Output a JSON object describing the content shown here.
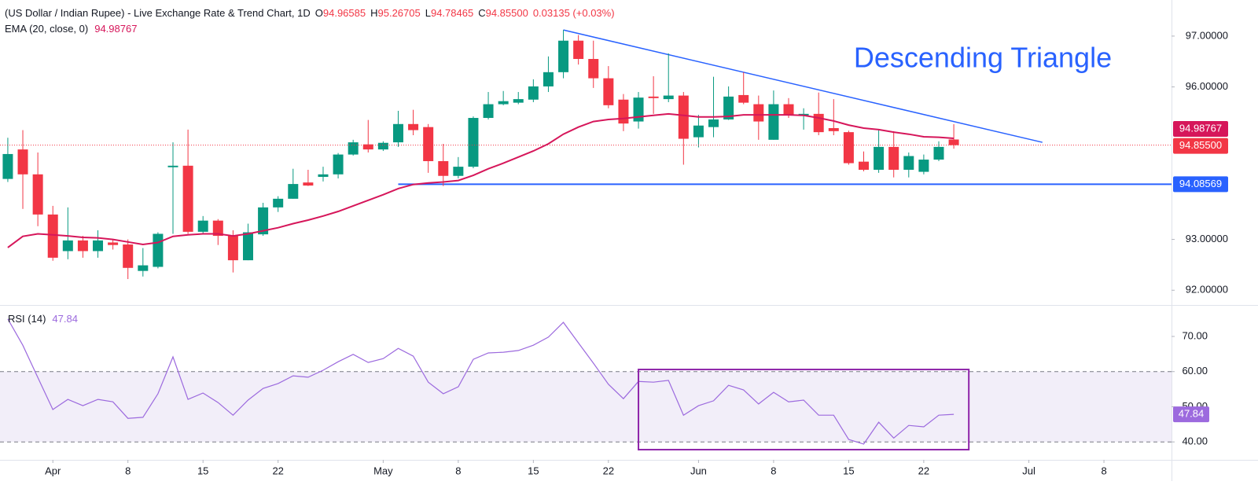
{
  "chart_data": [
    {
      "type": "candlestick",
      "title": "(US Dollar / Indian Rupee) - Live Exchange Rate & Trend Chart, 1D",
      "ohlc_legend": [
        {
          "key": "O",
          "text": "94.96585"
        },
        {
          "key": "H",
          "text": "95.26705"
        },
        {
          "key": "L",
          "text": "94.78465"
        },
        {
          "key": "C",
          "text": "94.85500"
        }
      ],
      "change": "0.03135 (+0.03%)",
      "open": [
        94.19,
        94.77,
        94.28,
        93.49,
        92.77,
        92.98,
        92.77,
        92.94,
        92.9,
        92.38,
        92.46,
        94.42,
        94.45,
        93.15,
        93.37,
        93.07,
        92.59,
        93.1,
        93.63,
        93.8,
        94.12,
        94.23,
        94.28,
        94.67,
        94.87,
        94.77,
        94.91,
        95.27,
        95.21,
        94.54,
        94.25,
        94.43,
        95.39,
        95.66,
        95.69,
        95.75,
        96.01,
        96.29,
        96.91,
        96.55,
        96.17,
        95.75,
        95.32,
        95.81,
        95.76,
        95.83,
        95.01,
        95.21,
        95.36,
        95.84,
        95.66,
        94.96,
        95.66,
        95.44,
        95.47,
        95.19,
        95.11,
        94.53,
        94.37,
        94.82,
        94.37,
        94.33,
        94.57,
        94.96585
      ],
      "high": [
        95.0,
        95.15,
        94.71,
        93.66,
        93.63,
        93.07,
        93.18,
        93.0,
        93.0,
        92.83,
        93.14,
        94.91,
        95.16,
        93.46,
        93.4,
        93.18,
        93.31,
        93.72,
        93.85,
        94.39,
        94.37,
        94.43,
        94.7,
        94.96,
        95.35,
        94.93,
        95.53,
        95.55,
        95.27,
        94.88,
        94.62,
        95.42,
        95.9,
        95.92,
        95.9,
        96.15,
        96.6,
        97.12,
        97.02,
        96.91,
        96.41,
        95.86,
        95.9,
        96.21,
        96.66,
        95.9,
        95.45,
        96.2,
        96.01,
        96.29,
        95.83,
        95.93,
        95.78,
        95.58,
        95.89,
        95.76,
        95.14,
        94.73,
        95.16,
        95.13,
        94.71,
        94.67,
        94.93,
        95.26705
      ],
      "low": [
        94.13,
        93.6,
        93.26,
        92.58,
        92.61,
        92.64,
        92.64,
        92.8,
        92.22,
        92.27,
        92.43,
        93.11,
        93.11,
        93.11,
        92.89,
        92.35,
        92.59,
        93.07,
        93.54,
        93.8,
        94.05,
        94.14,
        94.2,
        94.65,
        94.71,
        94.74,
        94.82,
        95.05,
        94.31,
        94.05,
        94.2,
        94.4,
        95.36,
        95.64,
        95.66,
        95.7,
        95.9,
        96.17,
        96.44,
        95.98,
        95.58,
        95.13,
        95.18,
        95.47,
        95.7,
        94.47,
        94.81,
        95.01,
        95.35,
        95.66,
        94.96,
        94.96,
        95.39,
        95.16,
        95.05,
        95.05,
        94.47,
        94.34,
        94.31,
        94.22,
        94.22,
        94.28,
        94.54,
        94.78465
      ],
      "close": [
        94.68,
        94.28,
        93.49,
        92.64,
        92.98,
        92.77,
        92.98,
        92.89,
        92.44,
        92.49,
        93.11,
        94.45,
        93.15,
        93.37,
        93.07,
        92.59,
        93.14,
        93.63,
        93.8,
        94.09,
        94.06,
        94.28,
        94.67,
        94.91,
        94.77,
        94.9,
        95.27,
        95.15,
        94.54,
        94.25,
        94.43,
        95.39,
        95.66,
        95.72,
        95.76,
        96.01,
        96.29,
        96.91,
        96.55,
        96.17,
        95.64,
        95.28,
        95.79,
        95.78,
        95.83,
        94.98,
        95.24,
        95.36,
        95.81,
        95.69,
        95.32,
        95.66,
        95.44,
        95.47,
        95.11,
        95.13,
        94.5,
        94.37,
        94.82,
        94.37,
        94.64,
        94.57,
        94.82,
        94.855
      ],
      "close_last_label": "94.85500",
      "up_color": "#089981",
      "down_color": "#f23645",
      "ema": {
        "name": "EMA (20, close, 0)",
        "last_label": "94.98767",
        "color": "#d6165a",
        "values": [
          92.84,
          93.06,
          93.11,
          93.09,
          93.07,
          93.04,
          93.03,
          93.0,
          92.95,
          92.9,
          92.94,
          93.06,
          93.09,
          93.11,
          93.11,
          93.07,
          93.11,
          93.17,
          93.23,
          93.31,
          93.38,
          93.46,
          93.55,
          93.66,
          93.77,
          93.88,
          94.0,
          94.08,
          94.11,
          94.13,
          94.16,
          94.26,
          94.39,
          94.5,
          94.62,
          94.74,
          94.88,
          95.07,
          95.21,
          95.32,
          95.36,
          95.38,
          95.41,
          95.44,
          95.47,
          95.44,
          95.41,
          95.41,
          95.42,
          95.45,
          95.45,
          95.45,
          95.45,
          95.44,
          95.39,
          95.33,
          95.25,
          95.19,
          95.16,
          95.11,
          95.07,
          95.02,
          95.01,
          94.98767
        ]
      },
      "xlim": [
        -0.52,
        77.5
      ],
      "xticks": [
        {
          "value": 3,
          "label": "Apr"
        },
        {
          "value": 8,
          "label": "8"
        },
        {
          "value": 13,
          "label": "15"
        },
        {
          "value": 18,
          "label": "22"
        },
        {
          "value": 25,
          "label": "May"
        },
        {
          "value": 30,
          "label": "8"
        },
        {
          "value": 35,
          "label": "15"
        },
        {
          "value": 40,
          "label": "22"
        },
        {
          "value": 46,
          "label": "Jun"
        },
        {
          "value": 51,
          "label": "8"
        },
        {
          "value": 56,
          "label": "15"
        },
        {
          "value": 61,
          "label": "22"
        },
        {
          "value": 68,
          "label": "Jul"
        },
        {
          "value": 73,
          "label": "8"
        }
      ],
      "ylim": [
        91.71,
        97.71
      ],
      "yticks": [
        {
          "value": 92,
          "label": "92.00000"
        },
        {
          "value": 93,
          "label": "93.00000"
        },
        {
          "value": 96,
          "label": "96.00000"
        },
        {
          "value": 97,
          "label": "97.00000"
        }
      ],
      "resistance": {
        "x": [
          37,
          68.9
        ],
        "y": [
          97.12,
          94.91
        ],
        "color": "#2962ff"
      },
      "support": {
        "value": 94.08569,
        "label": "94.08569",
        "from": 26,
        "color": "#2962ff"
      },
      "annotation": "Descending Triangle"
    },
    {
      "type": "line",
      "name": "RSI (14)",
      "last_label": "47.84",
      "color": "#9c6ade",
      "values": [
        75.0,
        67.5,
        58.3,
        49.2,
        52.1,
        50.3,
        52.1,
        51.4,
        46.7,
        47.0,
        53.7,
        64.2,
        52.1,
        53.9,
        51.2,
        47.6,
        51.9,
        55.2,
        56.6,
        58.8,
        58.4,
        60.4,
        62.8,
        64.9,
        62.6,
        63.7,
        66.6,
        64.4,
        57.0,
        53.7,
        55.7,
        63.5,
        65.3,
        65.5,
        66.0,
        67.5,
        69.8,
        74.0,
        68.2,
        62.4,
        56.4,
        52.3,
        57.2,
        57.0,
        57.5,
        47.6,
        50.3,
        51.7,
        56.1,
        54.8,
        50.8,
        54.1,
        51.4,
        51.9,
        47.6,
        47.6,
        40.7,
        39.4,
        45.6,
        41.1,
        44.7,
        44.3,
        47.6,
        47.84
      ],
      "ylim": [
        34.9,
        78.5
      ],
      "yticks": [
        {
          "value": 40,
          "label": "40.00"
        },
        {
          "value": 50,
          "label": "50.00"
        },
        {
          "value": 60,
          "label": "60.00"
        },
        {
          "value": 70,
          "label": "70.00"
        }
      ],
      "band": [
        40,
        60
      ],
      "box": {
        "x": [
          42,
          64
        ],
        "y": [
          37.8,
          60.6
        ],
        "color": "#8e24aa"
      }
    }
  ]
}
